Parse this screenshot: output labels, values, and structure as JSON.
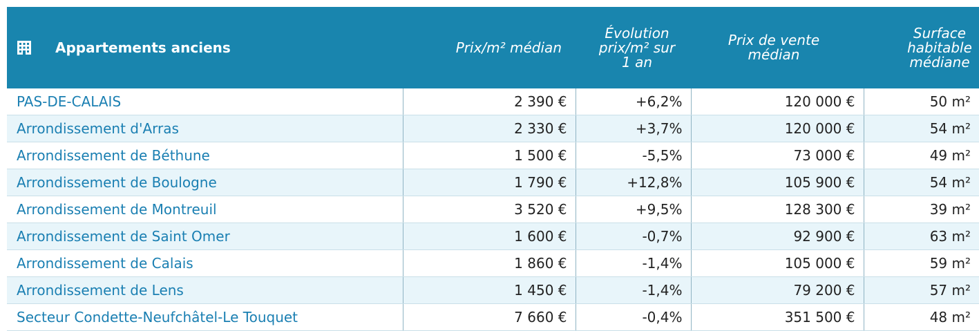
{
  "header": {
    "title": "Appartements anciens",
    "columns": [
      "Prix/m² médian",
      "Évolution prix/m² sur 1 an",
      "Prix de vente médian",
      "Surface habitable médiane"
    ]
  },
  "table": {
    "rows": [
      [
        "PAS-DE-CALAIS",
        "2 390 €",
        "+6,2%",
        "120 000 €",
        "50 m²"
      ],
      [
        "Arrondissement d'Arras",
        "2 330 €",
        "+3,7%",
        "120 000 €",
        "54 m²"
      ],
      [
        "Arrondissement de Béthune",
        "1 500 €",
        "-5,5%",
        "73 000 €",
        "49 m²"
      ],
      [
        "Arrondissement de Boulogne",
        "1 790 €",
        "+12,8%",
        "105 900 €",
        "54 m²"
      ],
      [
        "Arrondissement de Montreuil",
        "3 520 €",
        "+9,5%",
        "128 300 €",
        "39 m²"
      ],
      [
        "Arrondissement de Saint Omer",
        "1 600 €",
        "-0,7%",
        "92 900 €",
        "63 m²"
      ],
      [
        "Arrondissement de Calais",
        "1 860 €",
        "-1,4%",
        "105 000 €",
        "59 m²"
      ],
      [
        "Arrondissement de Lens",
        "1 450 €",
        "-1,4%",
        "79 200 €",
        "57 m²"
      ],
      [
        "Secteur Condette-Neufchâtel-Le Touquet",
        "7 660 €",
        "-0,4%",
        "351 500 €",
        "48 m²"
      ]
    ]
  }
}
